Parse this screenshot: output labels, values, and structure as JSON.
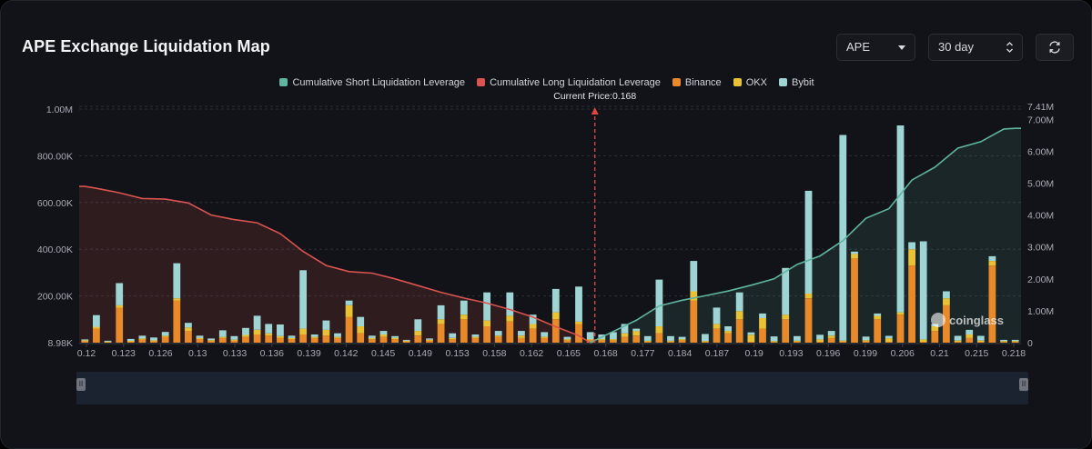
{
  "header": {
    "title": "APE Exchange Liquidation Map",
    "asset_select": "APE",
    "range_select": "30 day",
    "refresh_icon": "refresh-icon"
  },
  "legend": {
    "short_cum": "Cumulative Short Liquidation Leverage",
    "long_cum": "Cumulative Long Liquidation Leverage",
    "binance": "Binance",
    "okx": "OKX",
    "bybit": "Bybit"
  },
  "current_price_label": "Current Price:0.168",
  "watermark": "coinglass",
  "colors": {
    "background": "#121318",
    "short_line": "#5fb59f",
    "long_line": "#d9534f",
    "binance": "#e8892a",
    "okx": "#e8c234",
    "bybit": "#9ed4d4",
    "current_price_line": "#e0463f"
  },
  "chart_data": {
    "type": "bar",
    "title": "APE Exchange Liquidation Map",
    "stacked": true,
    "x_ticks": [
      "0.12",
      "0.123",
      "0.126",
      "0.13",
      "0.133",
      "0.136",
      "0.139",
      "0.142",
      "0.145",
      "0.149",
      "0.153",
      "0.158",
      "0.162",
      "0.165",
      "0.168",
      "0.177",
      "0.184",
      "0.187",
      "0.19",
      "0.193",
      "0.196",
      "0.199",
      "0.206",
      "0.21",
      "0.215",
      "0.218"
    ],
    "y_left_ticks": [
      "8.98K",
      "200.00K",
      "400.00K",
      "600.00K",
      "800.00K",
      "1.00M"
    ],
    "y_left_range": [
      8980,
      1000000
    ],
    "y_right_ticks": [
      "0",
      "1.00M",
      "2.00M",
      "3.00M",
      "4.00M",
      "5.00M",
      "6.00M",
      "7.00M",
      "7.41M"
    ],
    "y_right_range": [
      0,
      7410000
    ],
    "current_price_index": 44,
    "series": [
      {
        "name": "Binance",
        "values": [
          8000,
          60000,
          4000,
          150000,
          6000,
          15000,
          8000,
          25000,
          180000,
          50000,
          15000,
          8000,
          20000,
          10000,
          25000,
          35000,
          30000,
          20000,
          15000,
          35000,
          20000,
          30000,
          20000,
          110000,
          40000,
          15000,
          25000,
          15000,
          6000,
          30000,
          10000,
          80000,
          15000,
          100000,
          20000,
          70000,
          25000,
          90000,
          20000,
          60000,
          20000,
          100000,
          10000,
          80000,
          10000,
          10000,
          10000,
          25000,
          30000,
          4000,
          40000,
          4000,
          10000,
          180000,
          4000,
          60000,
          40000,
          100000,
          4000,
          60000,
          4000,
          100000,
          4000,
          190000,
          4000,
          20000,
          6000,
          360000,
          6000,
          100000,
          4000,
          120000,
          330000,
          4000,
          50000,
          160000,
          4000,
          20000,
          4000,
          330000,
          4000,
          4000
        ]
      },
      {
        "name": "OKX",
        "values": [
          2000,
          8000,
          1000,
          10000,
          2000,
          3000,
          2000,
          5000,
          10000,
          15000,
          5000,
          3000,
          5000,
          3000,
          8000,
          20000,
          10000,
          8000,
          5000,
          25000,
          5000,
          25000,
          5000,
          50000,
          30000,
          5000,
          10000,
          5000,
          2000,
          20000,
          3000,
          20000,
          5000,
          20000,
          5000,
          25000,
          5000,
          25000,
          10000,
          20000,
          5000,
          30000,
          5000,
          10000,
          5000,
          5000,
          5000,
          15000,
          20000,
          4000,
          30000,
          4000,
          5000,
          40000,
          3000,
          20000,
          10000,
          35000,
          30000,
          45000,
          3000,
          20000,
          4000,
          20000,
          10000,
          10000,
          3000,
          20000,
          5000,
          15000,
          15000,
          10000,
          70000,
          10000,
          20000,
          30000,
          5000,
          15000,
          5000,
          20000,
          3000,
          3000
        ]
      },
      {
        "name": "Bybit",
        "values": [
          4000,
          50000,
          3000,
          95000,
          8000,
          12000,
          12000,
          16000,
          150000,
          20000,
          10000,
          7000,
          28000,
          15000,
          30000,
          60000,
          40000,
          50000,
          10000,
          250000,
          10000,
          40000,
          15000,
          20000,
          40000,
          10000,
          15000,
          8000,
          4000,
          50000,
          5000,
          60000,
          20000,
          60000,
          10000,
          120000,
          20000,
          100000,
          20000,
          40000,
          20000,
          100000,
          10000,
          150000,
          30000,
          20000,
          30000,
          40000,
          10000,
          20000,
          200000,
          20000,
          10000,
          130000,
          30000,
          70000,
          20000,
          80000,
          10000,
          20000,
          20000,
          200000,
          20000,
          440000,
          20000,
          20000,
          880000,
          10000,
          15000,
          10000,
          10000,
          800000,
          30000,
          420000,
          10000,
          30000,
          20000,
          20000,
          20000,
          20000,
          5000,
          5000
        ]
      },
      {
        "name": "Cumulative Long Liquidation Leverage",
        "axis": "right",
        "x_index": [
          0,
          1,
          3,
          5,
          7,
          9,
          11,
          13,
          15,
          17,
          19,
          21,
          23,
          25,
          27,
          29,
          31,
          33,
          35,
          37,
          39,
          41,
          43,
          44
        ],
        "values": [
          4900000,
          4840000,
          4700000,
          4520000,
          4500000,
          4380000,
          4000000,
          3860000,
          3760000,
          3420000,
          2860000,
          2420000,
          2230000,
          2180000,
          2000000,
          1790000,
          1580000,
          1400000,
          1240000,
          1040000,
          800000,
          500000,
          220000,
          0
        ]
      },
      {
        "name": "Cumulative Short Liquidation Leverage",
        "axis": "right",
        "x_index": [
          44,
          46,
          48,
          50,
          52,
          54,
          56,
          58,
          60,
          62,
          64,
          66,
          68,
          70,
          72,
          74,
          76,
          78,
          80,
          81
        ],
        "values": [
          0,
          350000,
          700000,
          1150000,
          1330000,
          1470000,
          1620000,
          1800000,
          2000000,
          2450000,
          2720000,
          3200000,
          3900000,
          4200000,
          5100000,
          5500000,
          6100000,
          6300000,
          6700000,
          6720000
        ]
      }
    ]
  }
}
